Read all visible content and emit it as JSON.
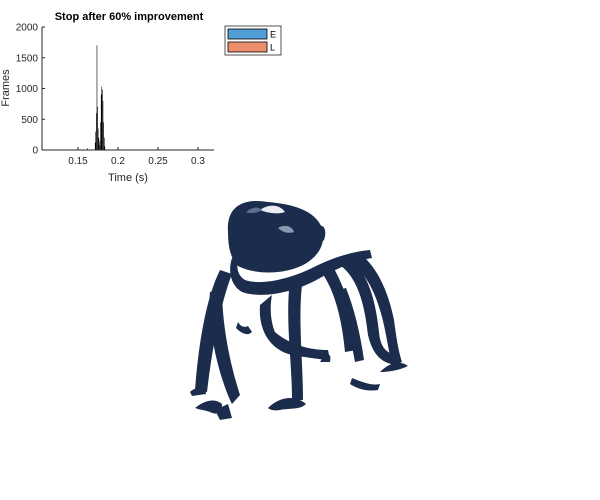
{
  "chart_data": {
    "type": "bar",
    "title": "Stop after 60% improvement",
    "xlabel": "Time (s)",
    "ylabel": "Frames",
    "xlim": [
      0.105,
      0.32
    ],
    "ylim": [
      0,
      2000
    ],
    "xticks": [
      "0.15",
      "0.2",
      "0.25",
      "0.3"
    ],
    "xtick_values": [
      0.15,
      0.2,
      0.25,
      0.3
    ],
    "yticks": [
      "0",
      "500",
      "1000",
      "1500",
      "2000"
    ],
    "ytick_values": [
      0,
      500,
      1000,
      1500,
      2000
    ],
    "grid": false,
    "legend_placement": "top-right outside",
    "series": [
      {
        "name": "E",
        "color": "#4f9ed6",
        "x": [
          0.162,
          0.1715,
          0.1722,
          0.173,
          0.1737,
          0.1745,
          0.1752,
          0.176,
          0.1767
        ],
        "values": [
          30,
          120,
          300,
          600,
          1700,
          700,
          350,
          200,
          80
        ]
      },
      {
        "name": "L",
        "color": "#ec8e6c",
        "x": [
          0.1775,
          0.1782,
          0.179,
          0.1797,
          0.1805,
          0.1812,
          0.182,
          0.1828,
          0.1835
        ],
        "values": [
          150,
          450,
          900,
          1030,
          980,
          800,
          450,
          200,
          60
        ]
      }
    ]
  },
  "colors": {
    "bar_fill": "#000000",
    "model_fill": "#1c2c4c"
  }
}
